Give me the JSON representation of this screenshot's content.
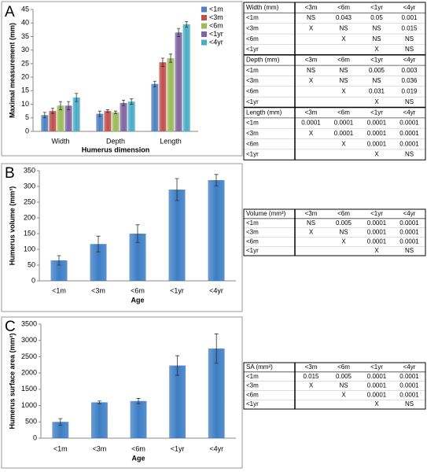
{
  "chart_data": [
    {
      "type": "grouped_bar",
      "panel_label": "A",
      "ylabel": "Maximal measurement (mm)",
      "xlabel": "Humerus dimension",
      "categories": [
        "Width",
        "Depth",
        "Length"
      ],
      "series": [
        {
          "name": "<1m",
          "color": "#4f81bd",
          "values": [
            6,
            6.5,
            17.5
          ],
          "errors": [
            1,
            1,
            1
          ]
        },
        {
          "name": "<3m",
          "color": "#c0504d",
          "values": [
            7.5,
            7.5,
            25.5
          ],
          "errors": [
            1,
            0.5,
            1.5
          ]
        },
        {
          "name": "<6m",
          "color": "#9bbb59",
          "values": [
            9.5,
            7,
            27
          ],
          "errors": [
            1.5,
            0.5,
            1.5
          ]
        },
        {
          "name": "<1yr",
          "color": "#8064a2",
          "values": [
            9.5,
            10.5,
            36.5
          ],
          "errors": [
            1.5,
            1,
            1.5
          ]
        },
        {
          "name": "<4yr",
          "color": "#4bacc6",
          "values": [
            12.5,
            11,
            39.5
          ],
          "errors": [
            1.5,
            1,
            1
          ]
        }
      ],
      "ylim": [
        0,
        45
      ],
      "yticks": [
        0,
        5,
        10,
        15,
        20,
        25,
        30,
        35,
        40,
        45
      ],
      "grid": false,
      "legend": "top-right"
    },
    {
      "type": "bar",
      "panel_label": "B",
      "ylabel": "Humerus volume (mm³)",
      "xlabel": "Age",
      "categories": [
        "<1m",
        "<3m",
        "<6m",
        "<1yr",
        "<4yr"
      ],
      "values": [
        65,
        117,
        150,
        290,
        320
      ],
      "errors": [
        15,
        25,
        28,
        35,
        18
      ],
      "color": "#3c7dc4",
      "ylim": [
        0,
        350
      ],
      "yticks": [
        0,
        50,
        100,
        150,
        200,
        250,
        300,
        350
      ],
      "grid": false
    },
    {
      "type": "bar",
      "panel_label": "C",
      "ylabel": "Humerus surface area (mm²)",
      "xlabel": "Age",
      "categories": [
        "<1m",
        "<3m",
        "<6m",
        "<1yr",
        "<4yr"
      ],
      "values": [
        500,
        1100,
        1140,
        2230,
        2750
      ],
      "errors": [
        100,
        40,
        80,
        300,
        450
      ],
      "color": "#3c7dc4",
      "ylim": [
        0,
        3500
      ],
      "yticks": [
        0,
        500,
        1000,
        1500,
        2000,
        2500,
        3000,
        3500
      ],
      "grid": false
    }
  ],
  "tables": [
    {
      "sections": [
        {
          "header": [
            "Width (mm)",
            "<3m",
            "<6m",
            "<1yr",
            "<4yr"
          ],
          "rows": [
            [
              "<1m",
              "NS",
              "0.043",
              "0.05",
              "0.001"
            ],
            [
              "<3m",
              "X",
              "NS",
              "NS",
              "0.015"
            ],
            [
              "<6m",
              null,
              "X",
              "NS",
              "NS"
            ],
            [
              "<1yr",
              null,
              null,
              "X",
              "NS"
            ]
          ]
        },
        {
          "header": [
            "Depth (mm)",
            "<3m",
            "<6m",
            "<1yr",
            "<4yr"
          ],
          "rows": [
            [
              "<1m",
              "NS",
              "NS",
              "0.005",
              "0.003"
            ],
            [
              "<3m",
              "X",
              "NS",
              "NS",
              "0.036"
            ],
            [
              "<6m",
              null,
              "X",
              "0.031",
              "0.019"
            ],
            [
              "<1yr",
              null,
              null,
              "X",
              "NS"
            ]
          ]
        },
        {
          "header": [
            "Length (mm)",
            "<3m",
            "<6m",
            "<1yr",
            "<4yr"
          ],
          "rows": [
            [
              "<1m",
              "0.0001",
              "0.0001",
              "0.0001",
              "0.0001"
            ],
            [
              "<3m",
              "X",
              "0.0001",
              "0.0001",
              "0.0001"
            ],
            [
              "<6m",
              null,
              "X",
              "0.0001",
              "0.0001"
            ],
            [
              "<1yr",
              null,
              null,
              "X",
              "NS"
            ]
          ]
        }
      ]
    },
    {
      "sections": [
        {
          "header": [
            "Volume (mm³)",
            "<3m",
            "<6m",
            "<1yr",
            "<4yr"
          ],
          "rows": [
            [
              "<1m",
              "NS",
              "0.005",
              "0.0001",
              "0.0001"
            ],
            [
              "<3m",
              "X",
              "NS",
              "0.0001",
              "0.0001"
            ],
            [
              "<6m",
              null,
              "X",
              "0.0001",
              "0.0001"
            ],
            [
              "<1yr",
              null,
              null,
              "X",
              "NS"
            ]
          ]
        }
      ]
    },
    {
      "sections": [
        {
          "header": [
            "SA (mm²)",
            "<3m",
            "<6m",
            "<1yr",
            "<4yr"
          ],
          "rows": [
            [
              "<1m",
              "0.015",
              "0.005",
              "0.0001",
              "0.0001"
            ],
            [
              "<3m",
              "X",
              "NS",
              "0.0001",
              "0.0001"
            ],
            [
              "<6m",
              null,
              "X",
              "0.0001",
              "0.0001"
            ],
            [
              "<1yr",
              null,
              null,
              "X",
              "NS"
            ]
          ]
        }
      ]
    }
  ]
}
